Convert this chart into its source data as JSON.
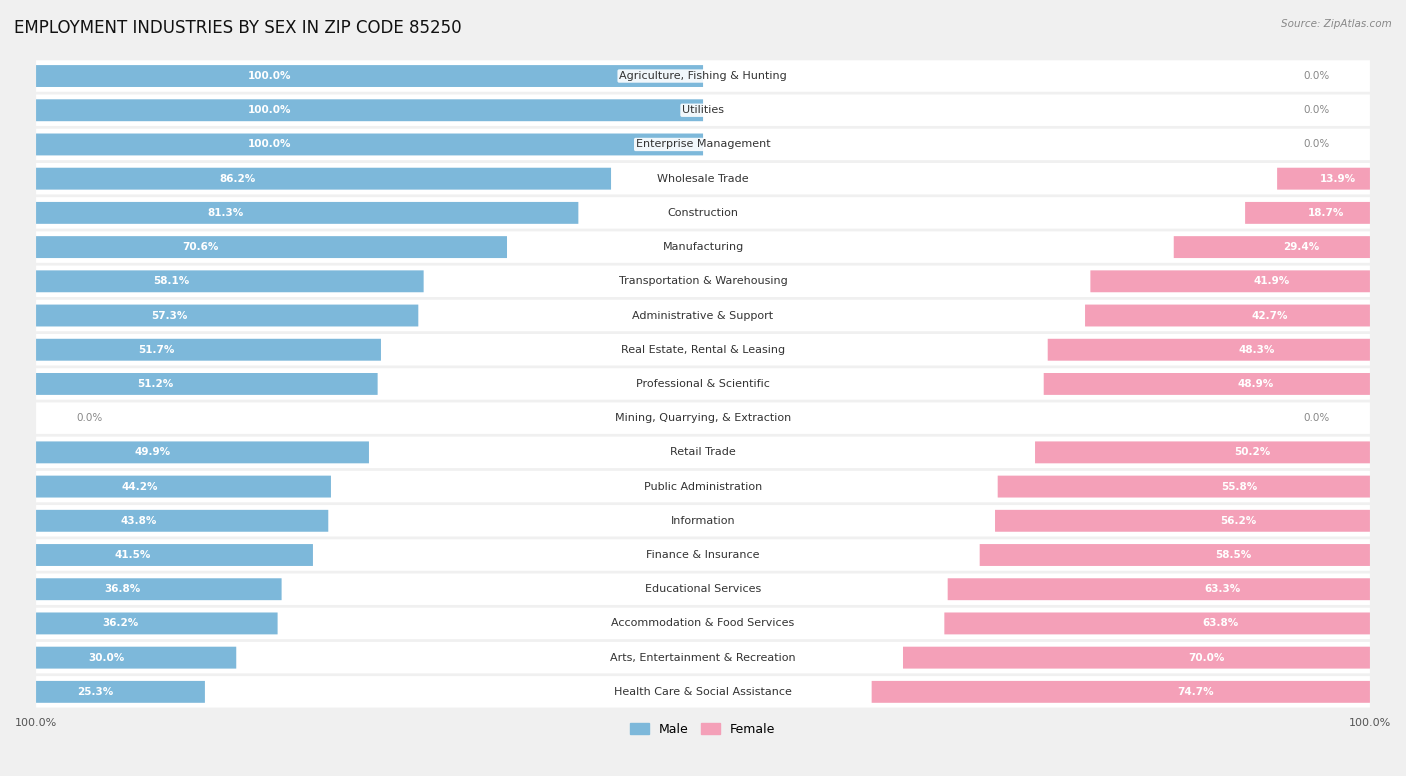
{
  "title": "EMPLOYMENT INDUSTRIES BY SEX IN ZIP CODE 85250",
  "source": "Source: ZipAtlas.com",
  "categories": [
    "Agriculture, Fishing & Hunting",
    "Utilities",
    "Enterprise Management",
    "Wholesale Trade",
    "Construction",
    "Manufacturing",
    "Transportation & Warehousing",
    "Administrative & Support",
    "Real Estate, Rental & Leasing",
    "Professional & Scientific",
    "Mining, Quarrying, & Extraction",
    "Retail Trade",
    "Public Administration",
    "Information",
    "Finance & Insurance",
    "Educational Services",
    "Accommodation & Food Services",
    "Arts, Entertainment & Recreation",
    "Health Care & Social Assistance"
  ],
  "male": [
    100.0,
    100.0,
    100.0,
    86.2,
    81.3,
    70.6,
    58.1,
    57.3,
    51.7,
    51.2,
    0.0,
    49.9,
    44.2,
    43.8,
    41.5,
    36.8,
    36.2,
    30.0,
    25.3
  ],
  "female": [
    0.0,
    0.0,
    0.0,
    13.9,
    18.7,
    29.4,
    41.9,
    42.7,
    48.3,
    48.9,
    0.0,
    50.2,
    55.8,
    56.2,
    58.5,
    63.3,
    63.8,
    70.0,
    74.7
  ],
  "male_color": "#7db8da",
  "female_color": "#f4a0b8",
  "bg_color": "#f0f0f0",
  "row_color": "#ffffff",
  "title_fontsize": 12,
  "label_fontsize": 8.0,
  "pct_fontsize": 7.5,
  "bar_height": 0.62,
  "total_width": 100.0
}
